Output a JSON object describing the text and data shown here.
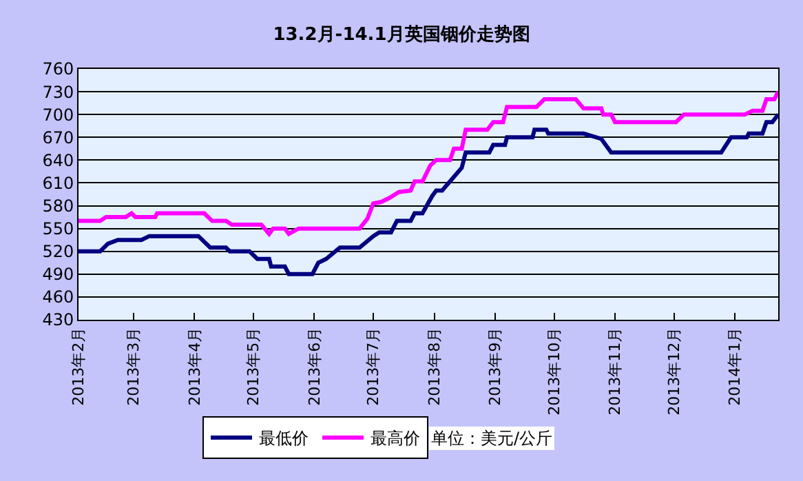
{
  "chart_data": {
    "type": "line",
    "title": "13.2月-14.1月英国铟价走势图",
    "x": [
      "2013-02-01",
      "2013-02-12",
      "2013-02-16",
      "2013-02-21",
      "2013-03-05",
      "2013-03-09",
      "2013-04-03",
      "2013-04-09",
      "2013-04-17",
      "2013-04-19",
      "2013-04-29",
      "2013-05-03",
      "2013-05-09",
      "2013-05-10",
      "2013-05-17",
      "2013-05-19",
      "2013-05-31",
      "2013-06-03",
      "2013-06-07",
      "2013-06-14",
      "2013-06-24",
      "2013-07-01",
      "2013-07-04",
      "2013-07-10",
      "2013-07-13",
      "2013-07-20",
      "2013-07-22",
      "2013-07-26",
      "2013-07-31",
      "2013-08-02",
      "2013-08-05",
      "2013-08-15",
      "2013-08-17",
      "2013-08-29",
      "2013-08-31",
      "2013-09-06",
      "2013-09-07",
      "2013-09-20",
      "2013-09-21",
      "2013-09-27",
      "2013-09-28",
      "2013-10-16",
      "2013-10-25",
      "2013-10-30",
      "2013-12-25",
      "2013-12-30",
      "2014-01-07",
      "2014-01-08",
      "2014-01-15",
      "2014-01-17",
      "2014-01-20",
      "2014-01-23"
    ],
    "series": [
      {
        "name": "最低价",
        "color": "#000080",
        "values": [
          520,
          520,
          530,
          535,
          535,
          540,
          540,
          525,
          525,
          520,
          520,
          510,
          510,
          500,
          500,
          490,
          490,
          505,
          510,
          525,
          525,
          540,
          545,
          545,
          560,
          560,
          570,
          570,
          593,
          600,
          600,
          630,
          650,
          650,
          660,
          660,
          670,
          670,
          680,
          680,
          675,
          675,
          668,
          650,
          650,
          670,
          670,
          675,
          675,
          690,
          690,
          700
        ]
      },
      {
        "name": "最高价",
        "color": "#ff00ff",
        "x": [
          "2013-02-01",
          "2013-02-12",
          "2013-02-15",
          "2013-02-25",
          "2013-02-28",
          "2013-03-02",
          "2013-03-12",
          "2013-03-13",
          "2013-04-06",
          "2013-04-10",
          "2013-04-17",
          "2013-04-20",
          "2013-05-05",
          "2013-05-09",
          "2013-05-11",
          "2013-05-17",
          "2013-05-19",
          "2013-05-24",
          "2013-06-24",
          "2013-06-28",
          "2013-07-01",
          "2013-07-05",
          "2013-07-09",
          "2013-07-14",
          "2013-07-20",
          "2013-07-22",
          "2013-07-26",
          "2013-07-30",
          "2013-08-02",
          "2013-08-09",
          "2013-08-11",
          "2013-08-15",
          "2013-08-17",
          "2013-08-28",
          "2013-08-31",
          "2013-09-05",
          "2013-09-07",
          "2013-09-22",
          "2013-09-26",
          "2013-10-12",
          "2013-10-16",
          "2013-10-25",
          "2013-10-26",
          "2013-10-30",
          "2013-11-01",
          "2013-12-02",
          "2013-12-06",
          "2014-01-06",
          "2014-01-10",
          "2014-01-15",
          "2014-01-17",
          "2014-01-21",
          "2014-01-23"
        ],
        "values": [
          560,
          560,
          565,
          565,
          570,
          565,
          565,
          570,
          570,
          560,
          560,
          555,
          555,
          543,
          550,
          550,
          543,
          550,
          550,
          563,
          583,
          585,
          590,
          598,
          600,
          612,
          612,
          633,
          640,
          640,
          655,
          655,
          680,
          680,
          690,
          690,
          710,
          710,
          720,
          720,
          708,
          708,
          700,
          700,
          690,
          690,
          700,
          700,
          705,
          705,
          720,
          720,
          730
        ]
      }
    ],
    "xlim": [
      "2013-02-01",
      "2014-01-23"
    ],
    "xticks": [
      {
        "value": "2013-02-01",
        "label": "2013年2月"
      },
      {
        "value": "2013-03-01",
        "label": "2013年3月"
      },
      {
        "value": "2013-04-01",
        "label": "2013年4月"
      },
      {
        "value": "2013-05-01",
        "label": "2013年5月"
      },
      {
        "value": "2013-06-01",
        "label": "2013年6月"
      },
      {
        "value": "2013-07-01",
        "label": "2013年7月"
      },
      {
        "value": "2013-08-01",
        "label": "2013年8月"
      },
      {
        "value": "2013-09-01",
        "label": "2013年9月"
      },
      {
        "value": "2013-10-01",
        "label": "2013年10月"
      },
      {
        "value": "2013-11-01",
        "label": "2013年11月"
      },
      {
        "value": "2013-12-01",
        "label": "2013年12月"
      },
      {
        "value": "2014-01-01",
        "label": "2014年1月"
      }
    ],
    "ylim": [
      430,
      760
    ],
    "yticks": [
      430,
      460,
      490,
      520,
      550,
      580,
      610,
      640,
      670,
      700,
      730,
      760
    ],
    "grid": "y",
    "legend": "bottom",
    "marker": "none",
    "line_style": "solid",
    "annotations": [
      "单位：美元/公斤"
    ]
  }
}
